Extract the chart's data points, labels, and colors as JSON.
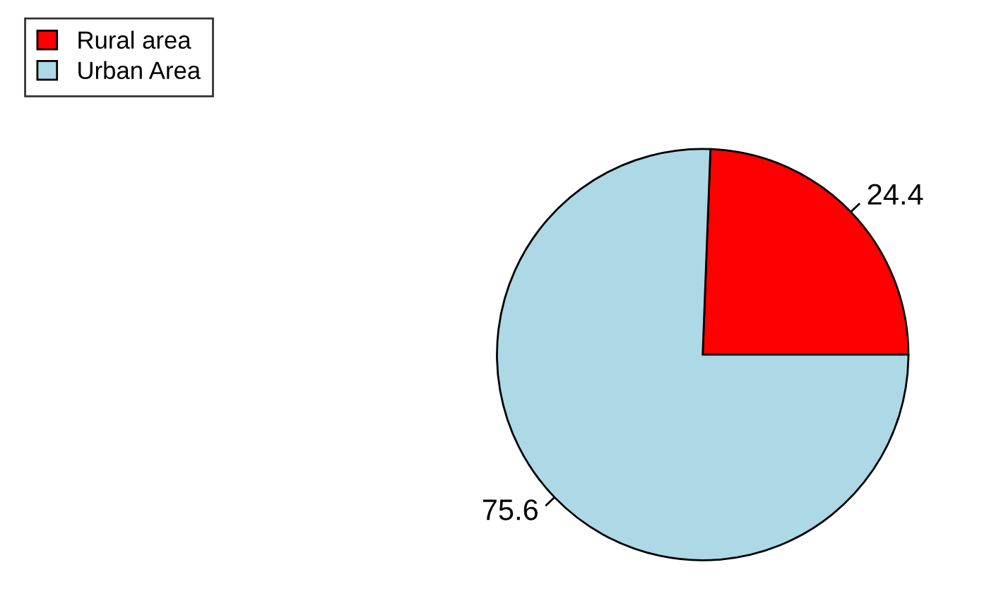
{
  "chart_data": {
    "type": "pie",
    "categories": [
      "Rural area",
      "Urban Area"
    ],
    "values": [
      24.4,
      75.6
    ],
    "colors": [
      "#ff0000",
      "#add8e6"
    ],
    "data_labels": true,
    "legend": "top left"
  }
}
